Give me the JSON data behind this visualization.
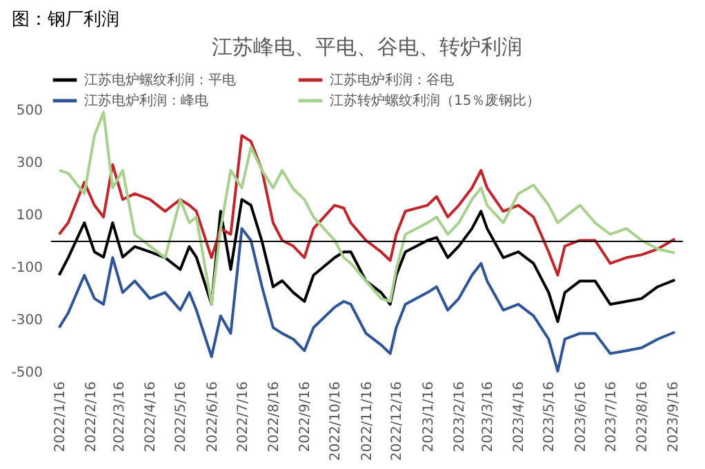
{
  "chart_data": {
    "type": "line",
    "title": "江苏峰电、平电、谷电、转炉利润",
    "annotations": [
      "图：钢厂利润"
    ],
    "x": [
      "2022-01-16",
      "2022-01-25",
      "2022-02-10",
      "2022-02-20",
      "2022-03-01",
      "2022-03-10",
      "2022-03-20",
      "2022-04-01",
      "2022-04-16",
      "2022-05-01",
      "2022-05-16",
      "2022-05-25",
      "2022-06-01",
      "2022-06-16",
      "2022-06-25",
      "2022-07-05",
      "2022-07-16",
      "2022-07-25",
      "2022-08-05",
      "2022-08-16",
      "2022-08-25",
      "2022-09-05",
      "2022-09-16",
      "2022-09-25",
      "2022-10-16",
      "2022-10-25",
      "2022-11-01",
      "2022-11-16",
      "2022-12-01",
      "2022-12-10",
      "2022-12-16",
      "2022-12-25",
      "2023-01-16",
      "2023-01-25",
      "2023-02-05",
      "2023-02-16",
      "2023-03-01",
      "2023-03-10",
      "2023-03-16",
      "2023-04-01",
      "2023-04-16",
      "2023-05-01",
      "2023-05-16",
      "2023-05-25",
      "2023-06-01",
      "2023-06-16",
      "2023-07-01",
      "2023-07-16",
      "2023-08-01",
      "2023-08-16",
      "2023-09-01",
      "2023-09-18"
    ],
    "series": [
      {
        "name": "江苏电炉螺纹利润：平电",
        "color": "#000000",
        "values": [
          -129,
          -62,
          71,
          -40,
          -60,
          71,
          -60,
          -20,
          -40,
          -62,
          -107,
          -20,
          -60,
          -240,
          115,
          -107,
          160,
          138,
          0,
          -173,
          -150,
          -195,
          -229,
          -129,
          -62,
          -40,
          -40,
          -151,
          -195,
          -240,
          -129,
          -40,
          4,
          15,
          -62,
          -18,
          49,
          115,
          49,
          -62,
          -40,
          -84,
          -195,
          -306,
          -195,
          -151,
          -151,
          -240,
          -229,
          -218,
          -173,
          -147
        ]
      },
      {
        "name": "江苏电炉利润：谷电",
        "color": "#c0272d",
        "values": [
          27,
          71,
          226,
          138,
          93,
          293,
          160,
          182,
          160,
          115,
          160,
          138,
          115,
          -62,
          49,
          27,
          404,
          382,
          271,
          71,
          4,
          -18,
          -62,
          49,
          138,
          127,
          71,
          4,
          -40,
          -73,
          27,
          115,
          138,
          171,
          93,
          138,
          204,
          271,
          204,
          115,
          138,
          93,
          -40,
          -129,
          -18,
          4,
          4,
          -84,
          -62,
          -51,
          -29,
          9
        ]
      },
      {
        "name": "江苏电炉利润：峰电",
        "color": "#2f5597",
        "values": [
          -329,
          -273,
          -129,
          -218,
          -240,
          -62,
          -195,
          -151,
          -218,
          -195,
          -262,
          -195,
          -262,
          -440,
          -284,
          -351,
          49,
          4,
          -173,
          -329,
          -351,
          -373,
          -417,
          -329,
          -251,
          -229,
          -240,
          -351,
          -395,
          -428,
          -329,
          -240,
          -195,
          -173,
          -262,
          -218,
          -129,
          -84,
          -151,
          -262,
          -240,
          -284,
          -373,
          -495,
          -373,
          -351,
          -351,
          -428,
          -417,
          -406,
          -373,
          -346
        ]
      },
      {
        "name": "江苏转炉螺纹利润（15％废钢比）",
        "color": "#a9d18e",
        "values": [
          271,
          260,
          182,
          404,
          493,
          204,
          271,
          27,
          -18,
          -62,
          160,
          71,
          93,
          -240,
          49,
          271,
          204,
          360,
          271,
          204,
          271,
          200,
          160,
          93,
          4,
          -62,
          -84,
          -151,
          -218,
          -229,
          -107,
          27,
          71,
          93,
          27,
          71,
          160,
          204,
          138,
          71,
          182,
          215,
          138,
          71,
          93,
          138,
          71,
          27,
          49,
          4,
          -29,
          -44
        ]
      }
    ],
    "xlim": [
      "2022-01-08",
      "2023-09-26"
    ],
    "xticks": [
      {
        "value": "2022-01-16",
        "label": "2022/1/16"
      },
      {
        "value": "2022-02-16",
        "label": "2022/2/16"
      },
      {
        "value": "2022-03-16",
        "label": "2022/3/16"
      },
      {
        "value": "2022-04-16",
        "label": "2022/4/16"
      },
      {
        "value": "2022-05-16",
        "label": "2022/5/16"
      },
      {
        "value": "2022-06-16",
        "label": "2022/6/16"
      },
      {
        "value": "2022-07-16",
        "label": "2022/7/16"
      },
      {
        "value": "2022-08-16",
        "label": "2022/8/16"
      },
      {
        "value": "2022-09-16",
        "label": "2022/9/16"
      },
      {
        "value": "2022-10-16",
        "label": "2022/10/16"
      },
      {
        "value": "2022-11-16",
        "label": "2022/11/16"
      },
      {
        "value": "2022-12-16",
        "label": "2022/12/16"
      },
      {
        "value": "2023-01-16",
        "label": "2023/1/16"
      },
      {
        "value": "2023-02-16",
        "label": "2023/2/16"
      },
      {
        "value": "2023-03-16",
        "label": "2023/3/16"
      },
      {
        "value": "2023-04-16",
        "label": "2023/4/16"
      },
      {
        "value": "2023-05-16",
        "label": "2023/5/16"
      },
      {
        "value": "2023-06-16",
        "label": "2023/6/16"
      },
      {
        "value": "2023-07-16",
        "label": "2023/7/16"
      },
      {
        "value": "2023-08-16",
        "label": "2023/8/16"
      },
      {
        "value": "2023-09-16",
        "label": "2023/9/16"
      }
    ],
    "ylim": [
      -500,
      500
    ],
    "yticks": [
      -500,
      -300,
      -100,
      100,
      300,
      500
    ],
    "ref_lines": [
      {
        "axis": "y",
        "value": 0,
        "label": null,
        "color": "#000000"
      }
    ],
    "grid": false,
    "legend": "top",
    "marker": "none",
    "line_style": "solid"
  }
}
